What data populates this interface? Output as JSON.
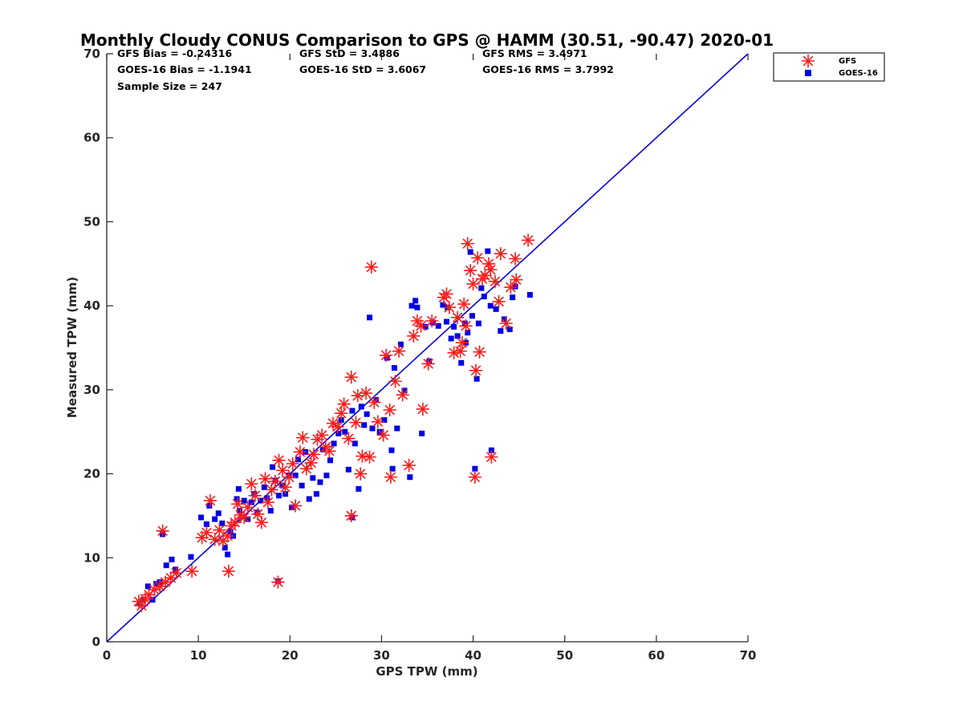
{
  "chart_data": {
    "type": "scatter",
    "title": "Monthly Cloudy CONUS Comparison to GPS @ HAMM (30.51, -90.47) 2020-01",
    "xlabel": "GPS TPW (mm)",
    "ylabel": "Measured TPW (mm)",
    "xlim": [
      0,
      70
    ],
    "ylim": [
      0,
      70
    ],
    "xticks": [
      "0",
      "10",
      "20",
      "30",
      "40",
      "50",
      "60",
      "70"
    ],
    "yticks": [
      "0",
      "10",
      "20",
      "30",
      "40",
      "50",
      "60",
      "70"
    ],
    "grid": false,
    "legend": "top-right, outside axes",
    "reference_line": {
      "label": "1:1",
      "color": "#0000e6",
      "from": [
        0,
        0
      ],
      "to": [
        70,
        70
      ]
    },
    "stats": [
      [
        "GFS Bias = -0.24316",
        "GFS StD = 3.4886",
        "GFS RMS = 3.4971"
      ],
      [
        "GOES-16 Bias = -1.1941",
        "GOES-16 StD = 3.6067",
        "GOES-16 RMS = 3.7992"
      ],
      [
        "Sample Size = 247"
      ]
    ],
    "series": [
      {
        "name": "GFS",
        "marker": "asterisk",
        "color": "#ff1a1a",
        "points": [
          [
            3.5,
            4.8
          ],
          [
            3.8,
            4.3
          ],
          [
            4.2,
            5.1
          ],
          [
            4.6,
            5.6
          ],
          [
            5.2,
            6.2
          ],
          [
            5.8,
            6.6
          ],
          [
            6.4,
            7.1
          ],
          [
            7.0,
            7.6
          ],
          [
            7.6,
            8.2
          ],
          [
            9.3,
            8.4
          ],
          [
            6.1,
            13.2
          ],
          [
            10.4,
            12.4
          ],
          [
            10.9,
            13.0
          ],
          [
            11.3,
            16.8
          ],
          [
            11.8,
            12.2
          ],
          [
            12.3,
            13.3
          ],
          [
            12.7,
            12.0
          ],
          [
            13.2,
            12.6
          ],
          [
            13.6,
            13.8
          ],
          [
            13.3,
            8.4
          ],
          [
            14.0,
            14.2
          ],
          [
            14.3,
            16.4
          ],
          [
            14.6,
            15.1
          ],
          [
            15.0,
            14.8
          ],
          [
            15.4,
            16.0
          ],
          [
            15.8,
            18.8
          ],
          [
            16.2,
            17.4
          ],
          [
            16.5,
            15.2
          ],
          [
            16.9,
            14.2
          ],
          [
            17.3,
            19.4
          ],
          [
            17.6,
            16.6
          ],
          [
            18.0,
            18.1
          ],
          [
            18.4,
            19.1
          ],
          [
            18.8,
            21.6
          ],
          [
            19.2,
            20.4
          ],
          [
            19.5,
            18.4
          ],
          [
            19.9,
            19.6
          ],
          [
            20.3,
            21.2
          ],
          [
            20.6,
            16.2
          ],
          [
            21.1,
            22.6
          ],
          [
            21.4,
            24.3
          ],
          [
            21.8,
            20.6
          ],
          [
            22.3,
            21.3
          ],
          [
            22.6,
            22.3
          ],
          [
            23.0,
            24.1
          ],
          [
            23.5,
            24.6
          ],
          [
            23.9,
            23.2
          ],
          [
            24.3,
            22.7
          ],
          [
            24.7,
            26.0
          ],
          [
            25.2,
            25.6
          ],
          [
            25.6,
            27.2
          ],
          [
            25.9,
            28.3
          ],
          [
            26.4,
            24.2
          ],
          [
            26.7,
            31.5
          ],
          [
            27.2,
            26.1
          ],
          [
            27.4,
            29.3
          ],
          [
            27.7,
            20.0
          ],
          [
            27.9,
            22.1
          ],
          [
            28.3,
            29.6
          ],
          [
            28.7,
            22.0
          ],
          [
            28.9,
            44.6
          ],
          [
            29.2,
            28.5
          ],
          [
            29.6,
            26.2
          ],
          [
            30.2,
            24.6
          ],
          [
            30.5,
            34.1
          ],
          [
            30.9,
            27.6
          ],
          [
            31.0,
            19.6
          ],
          [
            31.5,
            31.0
          ],
          [
            31.9,
            34.6
          ],
          [
            32.3,
            29.4
          ],
          [
            33.0,
            21.0
          ],
          [
            33.5,
            36.4
          ],
          [
            33.9,
            38.2
          ],
          [
            34.3,
            37.6
          ],
          [
            34.5,
            27.7
          ],
          [
            35.1,
            33.1
          ],
          [
            35.5,
            38.2
          ],
          [
            36.8,
            41.0
          ],
          [
            37.1,
            41.4
          ],
          [
            37.4,
            39.8
          ],
          [
            37.9,
            34.4
          ],
          [
            38.3,
            38.6
          ],
          [
            38.6,
            34.6
          ],
          [
            39.0,
            40.2
          ],
          [
            39.2,
            37.6
          ],
          [
            39.4,
            47.4
          ],
          [
            39.7,
            44.2
          ],
          [
            40.0,
            42.6
          ],
          [
            40.2,
            19.6
          ],
          [
            40.3,
            32.3
          ],
          [
            40.5,
            45.7
          ],
          [
            40.7,
            34.5
          ],
          [
            41.0,
            43.2
          ],
          [
            41.3,
            43.6
          ],
          [
            41.7,
            45.0
          ],
          [
            41.9,
            44.3
          ],
          [
            42.0,
            22.0
          ],
          [
            42.4,
            42.9
          ],
          [
            42.8,
            40.5
          ],
          [
            43.0,
            46.2
          ],
          [
            43.6,
            37.9
          ],
          [
            44.1,
            42.2
          ],
          [
            44.6,
            45.6
          ],
          [
            44.7,
            43.1
          ],
          [
            46.0,
            47.8
          ],
          [
            26.7,
            15.0
          ],
          [
            18.7,
            7.1
          ],
          [
            38.8,
            35.6
          ]
        ]
      },
      {
        "name": "GOES-16",
        "marker": "square",
        "color": "#0000e6",
        "points": [
          [
            3.6,
            4.6
          ],
          [
            4.0,
            5.0
          ],
          [
            4.5,
            6.6
          ],
          [
            5.0,
            5.0
          ],
          [
            5.4,
            6.9
          ],
          [
            5.8,
            7.1
          ],
          [
            6.1,
            12.8
          ],
          [
            6.5,
            9.1
          ],
          [
            7.1,
            9.8
          ],
          [
            7.5,
            8.6
          ],
          [
            9.2,
            10.1
          ],
          [
            10.3,
            14.8
          ],
          [
            10.9,
            14.0
          ],
          [
            11.2,
            16.2
          ],
          [
            11.8,
            14.6
          ],
          [
            12.2,
            15.3
          ],
          [
            12.6,
            14.1
          ],
          [
            12.9,
            11.2
          ],
          [
            13.2,
            10.4
          ],
          [
            13.5,
            13.1
          ],
          [
            13.8,
            12.6
          ],
          [
            14.2,
            17.0
          ],
          [
            14.5,
            15.6
          ],
          [
            14.4,
            18.2
          ],
          [
            15.0,
            16.8
          ],
          [
            15.4,
            14.6
          ],
          [
            15.8,
            16.6
          ],
          [
            16.1,
            17.6
          ],
          [
            16.4,
            15.4
          ],
          [
            16.8,
            16.8
          ],
          [
            17.2,
            18.4
          ],
          [
            17.5,
            17.1
          ],
          [
            17.9,
            15.6
          ],
          [
            18.1,
            20.8
          ],
          [
            18.4,
            19.2
          ],
          [
            18.8,
            17.4
          ],
          [
            19.2,
            18.6
          ],
          [
            19.5,
            17.6
          ],
          [
            19.9,
            19.8
          ],
          [
            20.2,
            16.0
          ],
          [
            20.6,
            19.8
          ],
          [
            20.9,
            21.7
          ],
          [
            21.3,
            18.6
          ],
          [
            21.7,
            22.6
          ],
          [
            22.1,
            17.0
          ],
          [
            22.5,
            19.5
          ],
          [
            22.9,
            17.6
          ],
          [
            23.3,
            19.0
          ],
          [
            23.6,
            22.9
          ],
          [
            24.0,
            19.8
          ],
          [
            24.4,
            21.6
          ],
          [
            24.8,
            23.6
          ],
          [
            25.3,
            24.8
          ],
          [
            25.6,
            26.4
          ],
          [
            26.0,
            25.0
          ],
          [
            26.4,
            20.5
          ],
          [
            26.8,
            27.5
          ],
          [
            27.1,
            23.6
          ],
          [
            27.5,
            18.2
          ],
          [
            27.8,
            28.0
          ],
          [
            28.1,
            25.8
          ],
          [
            28.4,
            27.1
          ],
          [
            28.7,
            38.6
          ],
          [
            29.0,
            25.4
          ],
          [
            29.4,
            28.8
          ],
          [
            29.8,
            25.0
          ],
          [
            30.3,
            26.4
          ],
          [
            30.6,
            33.8
          ],
          [
            31.1,
            22.8
          ],
          [
            31.2,
            20.6
          ],
          [
            31.4,
            32.6
          ],
          [
            31.7,
            25.4
          ],
          [
            32.1,
            35.4
          ],
          [
            32.5,
            29.9
          ],
          [
            33.1,
            19.6
          ],
          [
            33.3,
            40.0
          ],
          [
            33.7,
            40.6
          ],
          [
            33.9,
            39.8
          ],
          [
            34.4,
            24.8
          ],
          [
            34.8,
            37.5
          ],
          [
            35.2,
            33.4
          ],
          [
            35.6,
            38.0
          ],
          [
            36.2,
            37.6
          ],
          [
            36.7,
            40.1
          ],
          [
            37.2,
            39.8
          ],
          [
            37.6,
            36.1
          ],
          [
            37.9,
            37.5
          ],
          [
            38.3,
            36.4
          ],
          [
            38.7,
            33.2
          ],
          [
            39.1,
            37.9
          ],
          [
            39.2,
            35.6
          ],
          [
            39.4,
            36.8
          ],
          [
            39.7,
            46.4
          ],
          [
            39.9,
            38.8
          ],
          [
            40.2,
            20.6
          ],
          [
            40.4,
            31.3
          ],
          [
            40.6,
            37.9
          ],
          [
            40.9,
            42.1
          ],
          [
            41.2,
            41.1
          ],
          [
            41.6,
            46.5
          ],
          [
            41.9,
            40.0
          ],
          [
            42.0,
            22.8
          ],
          [
            42.5,
            39.6
          ],
          [
            43.0,
            37.0
          ],
          [
            43.4,
            38.4
          ],
          [
            44.0,
            37.2
          ],
          [
            44.3,
            41.0
          ],
          [
            44.6,
            42.3
          ],
          [
            46.2,
            41.3
          ],
          [
            26.8,
            14.8
          ],
          [
            18.7,
            7.2
          ],
          [
            37.1,
            38.1
          ]
        ]
      }
    ]
  }
}
